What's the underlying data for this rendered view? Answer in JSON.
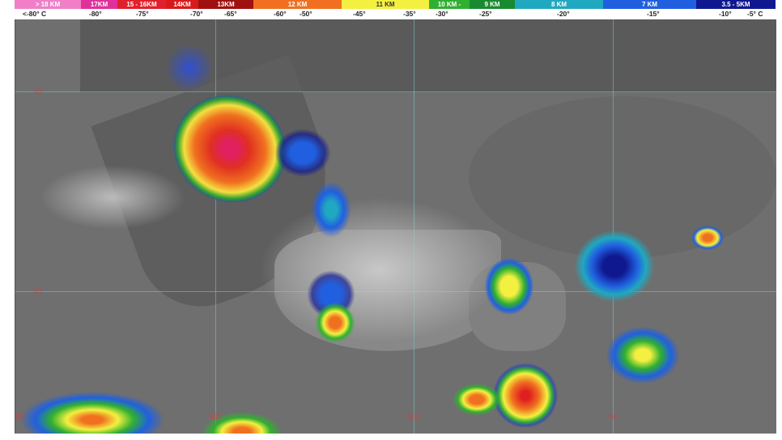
{
  "legend": {
    "segments": [
      {
        "label": "> 18 KM",
        "color": "#f07fc8"
      },
      {
        "label": "17KM",
        "color": "#e0309a"
      },
      {
        "label": "15 - 16KM",
        "color": "#e0202c"
      },
      {
        "label": "14KM",
        "color": "#d81a1a"
      },
      {
        "label": "13KM",
        "color": "#a01010"
      },
      {
        "label": "12 KM",
        "color": "#f07020"
      },
      {
        "label": "11 KM",
        "color": "#f4f040"
      },
      {
        "label": "10 KM -",
        "color": "#30b030"
      },
      {
        "label": "9 KM",
        "color": "#1a8a30"
      },
      {
        "label": "8 KM",
        "color": "#20a8c0"
      },
      {
        "label": "7 KM",
        "color": "#2060e0"
      },
      {
        "label": "3.5 - 5KM",
        "color": "#101890"
      }
    ],
    "temperatures": [
      "<-80° C",
      "-80°",
      "-75°",
      "-70°",
      "-65°",
      "-60°",
      "-50°",
      "-45°",
      "-35°",
      "-30°",
      "-25°",
      "-20°",
      "-15°",
      "-10°",
      "-5° C"
    ]
  },
  "map": {
    "latitude_labels": [
      "30",
      "20"
    ],
    "longitude_labels": [
      "-120",
      "-110",
      "-100",
      "-90"
    ]
  }
}
